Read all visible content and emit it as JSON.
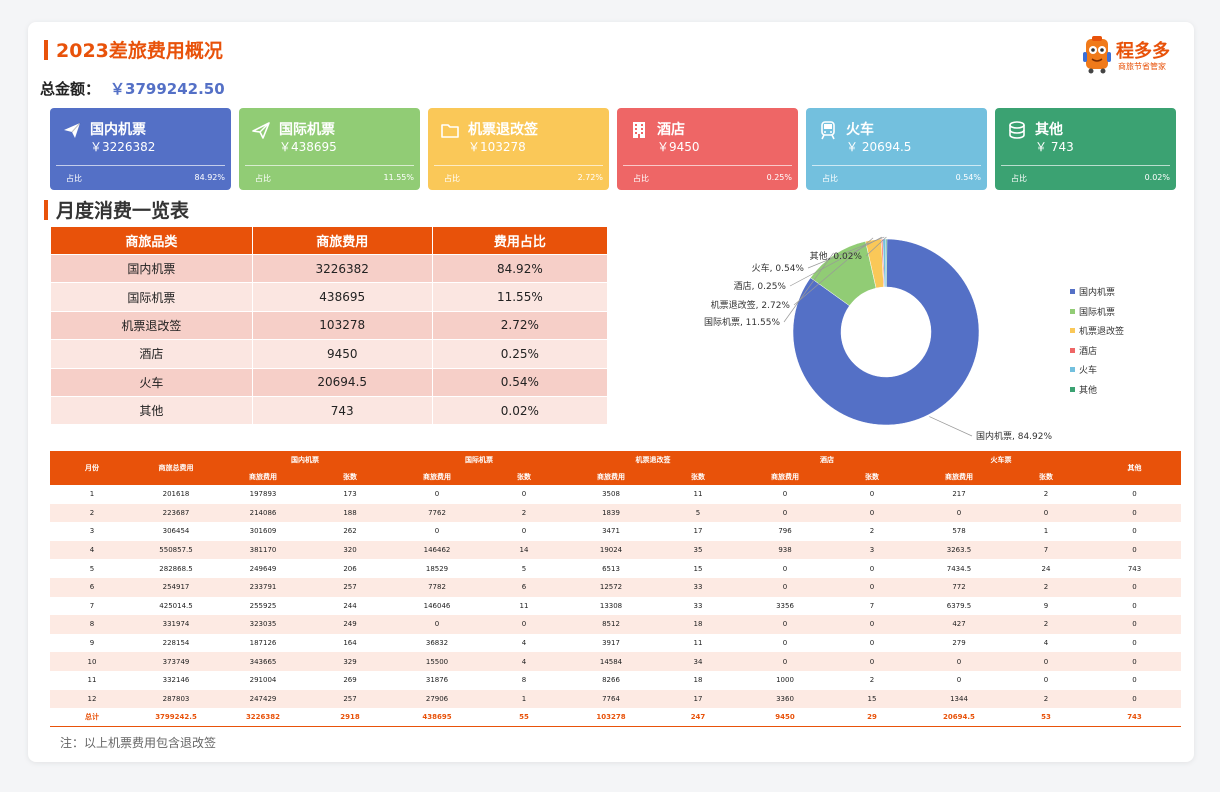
{
  "header": {
    "title": "2023差旅费用概况",
    "logo_name": "程多多",
    "logo_sub": "商旅节省管家"
  },
  "total": {
    "label": "总金额：",
    "value": "￥3799242.50"
  },
  "cards": [
    {
      "title": "国内机票",
      "value": "￥3226382",
      "ratio_label": "占比",
      "ratio": "84.92%",
      "color": "#5470c6",
      "icon": "plane-icon"
    },
    {
      "title": "国际机票",
      "value": "￥438695",
      "ratio_label": "占比",
      "ratio": "11.55%",
      "color": "#91cc75",
      "icon": "paper-plane-icon"
    },
    {
      "title": "机票退改签",
      "value": "￥103278",
      "ratio_label": "占比",
      "ratio": "2.72%",
      "color": "#fac858",
      "icon": "folder-icon"
    },
    {
      "title": "酒店",
      "value": "￥9450",
      "ratio_label": "占比",
      "ratio": "0.25%",
      "color": "#ee6666",
      "icon": "building-icon"
    },
    {
      "title": "火车",
      "value": "￥ 20694.5",
      "ratio_label": "占比",
      "ratio": "0.54%",
      "color": "#73c0de",
      "icon": "train-icon"
    },
    {
      "title": "其他",
      "value": "￥ 743",
      "ratio_label": "占比",
      "ratio": "0.02%",
      "color": "#3ba272",
      "icon": "coins-icon"
    }
  ],
  "monthly_title": "月度消费一览表",
  "summary_table": {
    "headers": [
      "商旅品类",
      "商旅费用",
      "费用占比"
    ],
    "rows": [
      [
        "国内机票",
        "3226382",
        "84.92%"
      ],
      [
        "国际机票",
        "438695",
        "11.55%"
      ],
      [
        "机票退改签",
        "103278",
        "2.72%"
      ],
      [
        "酒店",
        "9450",
        "0.25%"
      ],
      [
        "火车",
        "20694.5",
        "0.54%"
      ],
      [
        "其他",
        "743",
        "0.02%"
      ]
    ]
  },
  "chart_data": {
    "type": "pie",
    "categories": [
      "国内机票",
      "国际机票",
      "机票退改签",
      "酒店",
      "火车",
      "其他"
    ],
    "values": [
      84.92,
      11.55,
      2.72,
      0.25,
      0.54,
      0.02
    ],
    "labels": [
      "国内机票, 84.92%",
      "国际机票, 11.55%",
      "机票退改签, 2.72%",
      "酒店, 0.25%",
      "火车, 0.54%",
      "其他, 0.02%"
    ],
    "colors": [
      "#5470c6",
      "#91cc75",
      "#fac858",
      "#ee6666",
      "#73c0de",
      "#3ba272"
    ],
    "legend_position": "right"
  },
  "detail_table": {
    "group_headers": [
      "月份",
      "商旅总费用",
      "国内机票",
      "国际机票",
      "机票退改签",
      "酒店",
      "火车票",
      "其他"
    ],
    "sub_headers": [
      "商旅费用",
      "张数",
      "商旅费用",
      "张数",
      "商旅费用",
      "张数",
      "商旅费用",
      "张数",
      "商旅费用",
      "张数"
    ],
    "rows": [
      [
        "1",
        "201618",
        "197893",
        "173",
        "0",
        "0",
        "3508",
        "11",
        "0",
        "0",
        "217",
        "2",
        "0"
      ],
      [
        "2",
        "223687",
        "214086",
        "188",
        "7762",
        "2",
        "1839",
        "5",
        "0",
        "0",
        "0",
        "0",
        "0"
      ],
      [
        "3",
        "306454",
        "301609",
        "262",
        "0",
        "0",
        "3471",
        "17",
        "796",
        "2",
        "578",
        "1",
        "0"
      ],
      [
        "4",
        "550857.5",
        "381170",
        "320",
        "146462",
        "14",
        "19024",
        "35",
        "938",
        "3",
        "3263.5",
        "7",
        "0"
      ],
      [
        "5",
        "282868.5",
        "249649",
        "206",
        "18529",
        "5",
        "6513",
        "15",
        "0",
        "0",
        "7434.5",
        "24",
        "743"
      ],
      [
        "6",
        "254917",
        "233791",
        "257",
        "7782",
        "6",
        "12572",
        "33",
        "0",
        "0",
        "772",
        "2",
        "0"
      ],
      [
        "7",
        "425014.5",
        "255925",
        "244",
        "146046",
        "11",
        "13308",
        "33",
        "3356",
        "7",
        "6379.5",
        "9",
        "0"
      ],
      [
        "8",
        "331974",
        "323035",
        "249",
        "0",
        "0",
        "8512",
        "18",
        "0",
        "0",
        "427",
        "2",
        "0"
      ],
      [
        "9",
        "228154",
        "187126",
        "164",
        "36832",
        "4",
        "3917",
        "11",
        "0",
        "0",
        "279",
        "4",
        "0"
      ],
      [
        "10",
        "373749",
        "343665",
        "329",
        "15500",
        "4",
        "14584",
        "34",
        "0",
        "0",
        "0",
        "0",
        "0"
      ],
      [
        "11",
        "332146",
        "291004",
        "269",
        "31876",
        "8",
        "8266",
        "18",
        "1000",
        "2",
        "0",
        "0",
        "0"
      ],
      [
        "12",
        "287803",
        "247429",
        "257",
        "27906",
        "1",
        "7764",
        "17",
        "3360",
        "15",
        "1344",
        "2",
        "0"
      ]
    ],
    "total_row": [
      "总计",
      "3799242.5",
      "3226382",
      "2918",
      "438695",
      "55",
      "103278",
      "247",
      "9450",
      "29",
      "20694.5",
      "53",
      "743"
    ]
  },
  "note": "注：以上机票费用包含退改签"
}
